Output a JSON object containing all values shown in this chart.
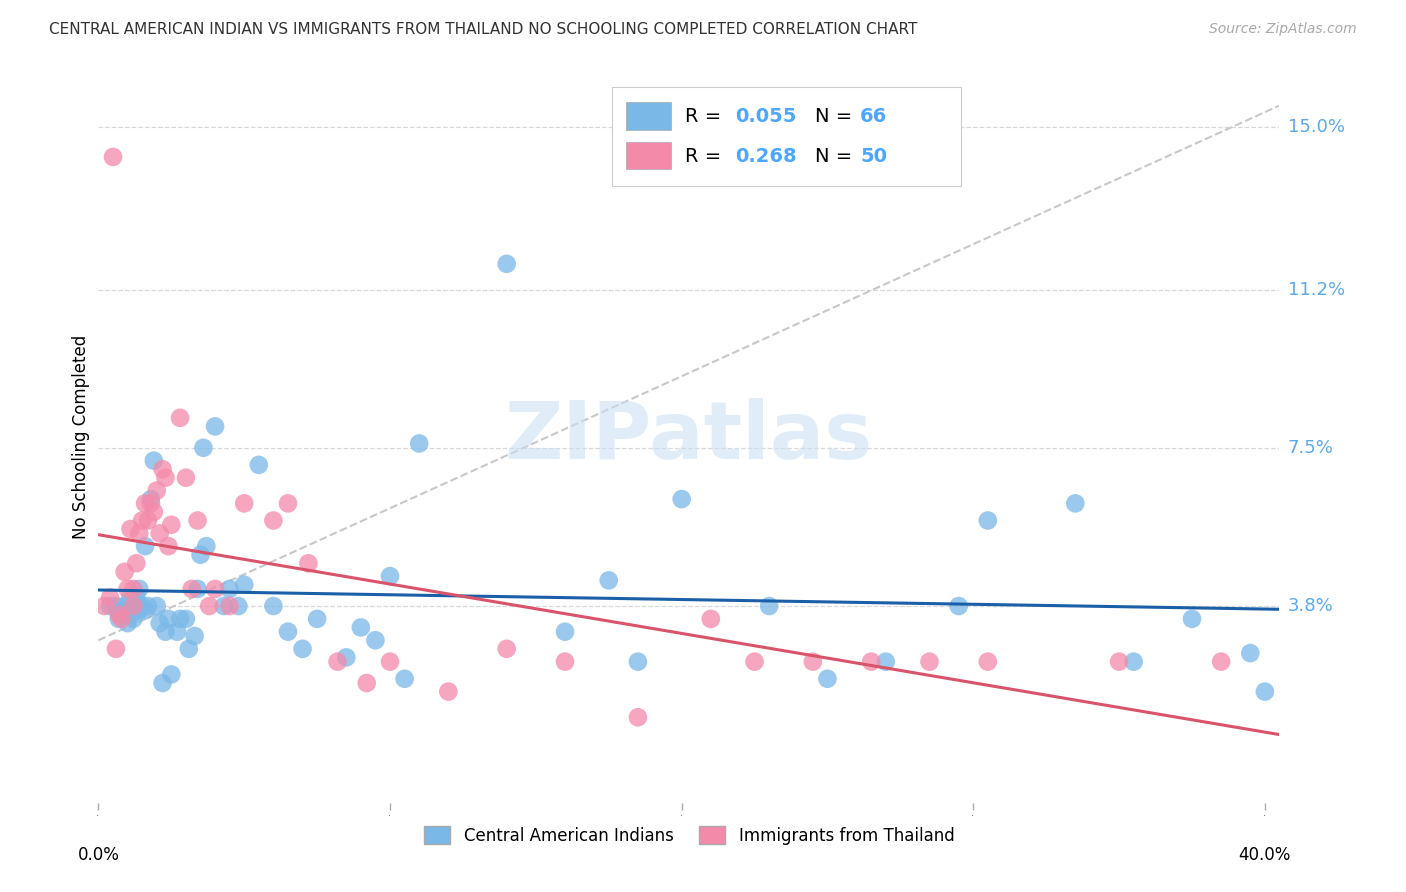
{
  "title": "CENTRAL AMERICAN INDIAN VS IMMIGRANTS FROM THAILAND NO SCHOOLING COMPLETED CORRELATION CHART",
  "source": "Source: ZipAtlas.com",
  "ylabel": "No Schooling Completed",
  "ytick_labels": [
    "3.8%",
    "7.5%",
    "11.2%",
    "15.0%"
  ],
  "ytick_values": [
    0.038,
    0.075,
    0.112,
    0.15
  ],
  "xlim": [
    0.0,
    0.405
  ],
  "ylim": [
    -0.008,
    0.163
  ],
  "color_blue": "#7ab8e8",
  "color_pink": "#f48aaa",
  "color_line_blue": "#1a5fa8",
  "color_line_pink": "#d9536a",
  "color_dashed": "#c8c8c8",
  "watermark_color": "#c8dff5",
  "grid_color": "#d8d8d8",
  "R1": "0.055",
  "N1": "66",
  "R2": "0.268",
  "N2": "50",
  "blue_x": [
    0.004,
    0.006,
    0.007,
    0.008,
    0.009,
    0.009,
    0.01,
    0.011,
    0.011,
    0.012,
    0.012,
    0.013,
    0.014,
    0.014,
    0.015,
    0.016,
    0.016,
    0.017,
    0.018,
    0.019,
    0.02,
    0.021,
    0.022,
    0.023,
    0.024,
    0.025,
    0.027,
    0.028,
    0.03,
    0.031,
    0.033,
    0.034,
    0.035,
    0.036,
    0.037,
    0.04,
    0.043,
    0.045,
    0.048,
    0.05,
    0.055,
    0.06,
    0.065,
    0.07,
    0.075,
    0.085,
    0.09,
    0.095,
    0.1,
    0.105,
    0.11,
    0.14,
    0.16,
    0.175,
    0.185,
    0.2,
    0.23,
    0.25,
    0.27,
    0.295,
    0.305,
    0.335,
    0.355,
    0.375,
    0.395,
    0.4
  ],
  "blue_y": [
    0.038,
    0.038,
    0.035,
    0.036,
    0.038,
    0.037,
    0.034,
    0.036,
    0.04,
    0.035,
    0.038,
    0.04,
    0.037,
    0.042,
    0.038,
    0.052,
    0.037,
    0.038,
    0.063,
    0.072,
    0.038,
    0.034,
    0.02,
    0.032,
    0.035,
    0.022,
    0.032,
    0.035,
    0.035,
    0.028,
    0.031,
    0.042,
    0.05,
    0.075,
    0.052,
    0.08,
    0.038,
    0.042,
    0.038,
    0.043,
    0.071,
    0.038,
    0.032,
    0.028,
    0.035,
    0.026,
    0.033,
    0.03,
    0.045,
    0.021,
    0.076,
    0.118,
    0.032,
    0.044,
    0.025,
    0.063,
    0.038,
    0.021,
    0.025,
    0.038,
    0.058,
    0.062,
    0.025,
    0.035,
    0.027,
    0.018
  ],
  "pink_x": [
    0.002,
    0.004,
    0.005,
    0.006,
    0.007,
    0.008,
    0.009,
    0.01,
    0.011,
    0.012,
    0.012,
    0.013,
    0.014,
    0.015,
    0.016,
    0.017,
    0.018,
    0.019,
    0.02,
    0.021,
    0.022,
    0.023,
    0.024,
    0.025,
    0.028,
    0.03,
    0.032,
    0.034,
    0.038,
    0.04,
    0.045,
    0.05,
    0.06,
    0.065,
    0.072,
    0.082,
    0.092,
    0.1,
    0.12,
    0.14,
    0.16,
    0.185,
    0.21,
    0.225,
    0.245,
    0.265,
    0.285,
    0.305,
    0.35,
    0.385
  ],
  "pink_y": [
    0.038,
    0.04,
    0.143,
    0.028,
    0.036,
    0.035,
    0.046,
    0.042,
    0.056,
    0.042,
    0.038,
    0.048,
    0.055,
    0.058,
    0.062,
    0.058,
    0.062,
    0.06,
    0.065,
    0.055,
    0.07,
    0.068,
    0.052,
    0.057,
    0.082,
    0.068,
    0.042,
    0.058,
    0.038,
    0.042,
    0.038,
    0.062,
    0.058,
    0.062,
    0.048,
    0.025,
    0.02,
    0.025,
    0.018,
    0.028,
    0.025,
    0.012,
    0.035,
    0.025,
    0.025,
    0.025,
    0.025,
    0.025,
    0.025,
    0.025
  ]
}
